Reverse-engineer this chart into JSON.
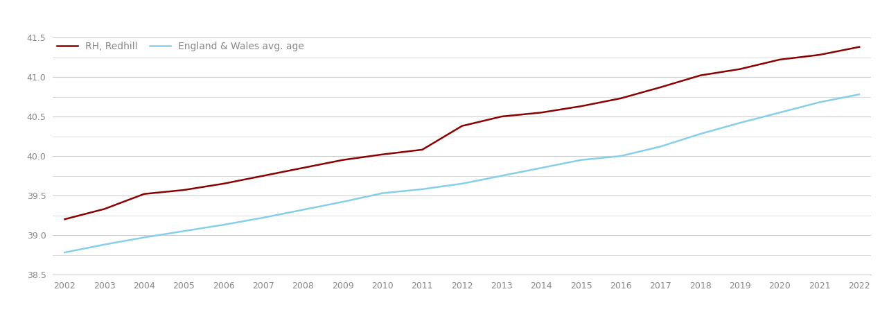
{
  "years": [
    2002,
    2003,
    2004,
    2005,
    2006,
    2007,
    2008,
    2009,
    2010,
    2011,
    2012,
    2013,
    2014,
    2015,
    2016,
    2017,
    2018,
    2019,
    2020,
    2021,
    2022
  ],
  "redhill": [
    39.2,
    39.33,
    39.52,
    39.57,
    39.65,
    39.75,
    39.85,
    39.95,
    40.02,
    40.08,
    40.38,
    40.5,
    40.55,
    40.63,
    40.73,
    40.87,
    41.02,
    41.1,
    41.22,
    41.28,
    41.38
  ],
  "england_wales": [
    38.78,
    38.88,
    38.97,
    39.05,
    39.13,
    39.22,
    39.32,
    39.42,
    39.53,
    39.58,
    39.65,
    39.75,
    39.85,
    39.95,
    40.0,
    40.12,
    40.28,
    40.42,
    40.55,
    40.68,
    40.78
  ],
  "redhill_color": "#8B0000",
  "ew_color": "#87CEEB",
  "background_color": "#ffffff",
  "grid_color": "#cccccc",
  "ylim": [
    38.5,
    41.5
  ],
  "yticks_major": [
    38.5,
    39.0,
    39.5,
    40.0,
    40.5,
    41.0,
    41.5
  ],
  "yticks_minor_step": 0.25,
  "legend_labels": [
    "RH, Redhill",
    "England & Wales avg. age"
  ],
  "redhill_linewidth": 1.8,
  "ew_linewidth": 1.8,
  "tick_color": "#888888",
  "tick_fontsize": 9,
  "legend_fontsize": 10
}
